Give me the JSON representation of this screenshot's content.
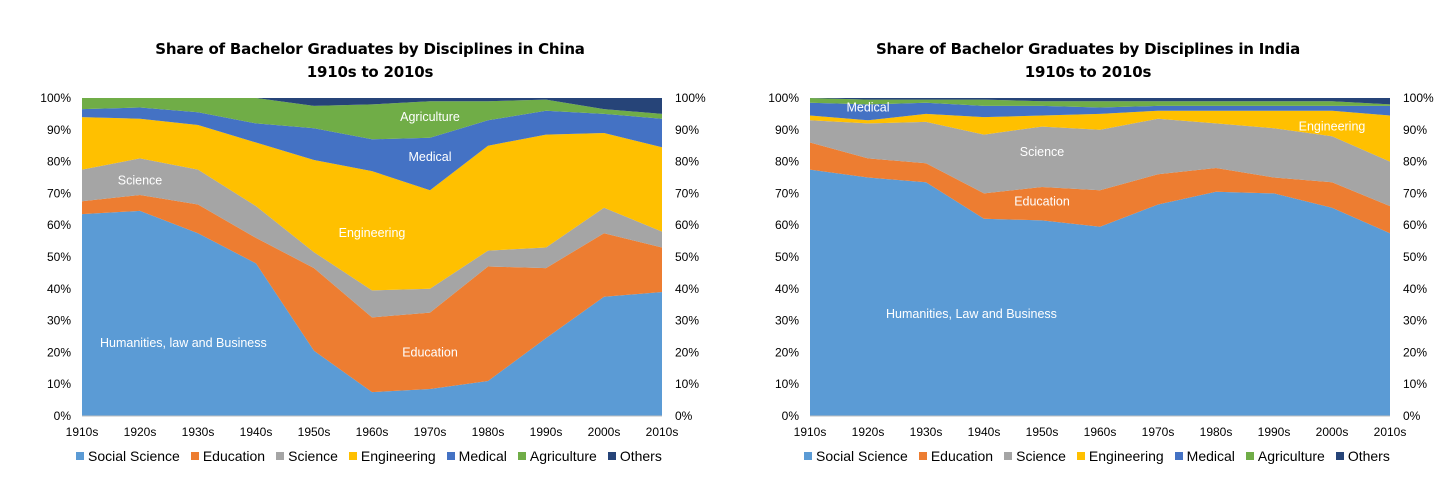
{
  "chart_data": [
    {
      "type": "area",
      "stacked": true,
      "title_line1": "Share of Bachelor Graduates by Disciplines in China",
      "title_line2": "1910s to 2010s",
      "categories": [
        "1910s",
        "1920s",
        "1930s",
        "1940s",
        "1950s",
        "1960s",
        "1970s",
        "1980s",
        "1990s",
        "2000s",
        "2010s"
      ],
      "ylim": [
        0,
        100
      ],
      "y_tick_labels": [
        "0%",
        "10%",
        "20%",
        "30%",
        "40%",
        "50%",
        "60%",
        "70%",
        "80%",
        "90%",
        "100%"
      ],
      "series": [
        {
          "name": "Social Science",
          "color": "#5B9BD5",
          "values": [
            63.5,
            64.5,
            57.5,
            48,
            20.5,
            7.5,
            8.5,
            11,
            24.5,
            37.5,
            39
          ]
        },
        {
          "name": "Education",
          "color": "#ED7D31",
          "values": [
            4,
            5,
            9,
            8,
            26,
            23.5,
            24,
            36,
            22,
            20,
            14
          ]
        },
        {
          "name": "Science",
          "color": "#A5A5A5",
          "values": [
            10,
            11.5,
            11,
            10,
            5,
            8.5,
            7.5,
            5,
            6.5,
            8,
            5
          ]
        },
        {
          "name": "Engineering",
          "color": "#FFC000",
          "values": [
            16.5,
            12.5,
            14,
            20,
            29,
            37.5,
            31,
            33,
            35.5,
            23.5,
            26.5
          ]
        },
        {
          "name": "Medical",
          "color": "#4472C4",
          "values": [
            2.5,
            3.5,
            4,
            6,
            10,
            10,
            16.5,
            8,
            7.5,
            6,
            9
          ]
        },
        {
          "name": "Agriculture",
          "color": "#70AD47",
          "values": [
            3.5,
            3,
            4.5,
            8,
            7,
            11,
            11.5,
            6,
            3.5,
            1.5,
            1.5
          ]
        },
        {
          "name": "Others",
          "color": "#264478",
          "values": [
            0,
            0,
            0,
            0,
            2.5,
            2,
            1,
            1,
            0.5,
            3.5,
            5
          ]
        }
      ],
      "annotations": [
        {
          "text": "Humanities, law and Business",
          "category": "1920s",
          "y": 23
        },
        {
          "text": "Education",
          "category": "1970s",
          "y": 20
        },
        {
          "text": "Engineering",
          "category": "1960s",
          "y": 57.5
        },
        {
          "text": "Science",
          "category": "1920s",
          "y": 74
        },
        {
          "text": "Medical",
          "category": "1970s",
          "y": 81.5
        },
        {
          "text": "Agriculture",
          "category": "1970s",
          "y": 94
        }
      ],
      "legend": [
        "Social Science",
        "Education",
        "Science",
        "Engineering",
        "Medical",
        "Agriculture",
        "Others"
      ]
    },
    {
      "type": "area",
      "stacked": true,
      "title_line1": "Share of Bachelor Graduates by Disciplines in India",
      "title_line2": "1910s to 2010s",
      "categories": [
        "1910s",
        "1920s",
        "1930s",
        "1940s",
        "1950s",
        "1960s",
        "1970s",
        "1980s",
        "1990s",
        "2000s",
        "2010s"
      ],
      "ylim": [
        0,
        100
      ],
      "y_tick_labels": [
        "0%",
        "10%",
        "20%",
        "30%",
        "40%",
        "50%",
        "60%",
        "70%",
        "80%",
        "90%",
        "100%"
      ],
      "series": [
        {
          "name": "Social Science",
          "color": "#5B9BD5",
          "values": [
            77.5,
            75,
            73.5,
            62,
            61.5,
            59.5,
            66.5,
            70.5,
            70,
            65.5,
            57.5
          ]
        },
        {
          "name": "Education",
          "color": "#ED7D31",
          "values": [
            8.5,
            6,
            6,
            8,
            10.5,
            11.5,
            9.5,
            7.5,
            5,
            8,
            8.5
          ]
        },
        {
          "name": "Science",
          "color": "#A5A5A5",
          "values": [
            7,
            11,
            13,
            18.5,
            19,
            19,
            17.5,
            14,
            15.5,
            14.5,
            14
          ]
        },
        {
          "name": "Engineering",
          "color": "#FFC000",
          "values": [
            1.5,
            1,
            2.5,
            5.5,
            3.5,
            5,
            2.5,
            4,
            5.5,
            8,
            14.5
          ]
        },
        {
          "name": "Medical",
          "color": "#4472C4",
          "values": [
            4,
            5,
            3.5,
            3.5,
            3,
            2,
            1.5,
            1.5,
            1.5,
            1.5,
            3
          ]
        },
        {
          "name": "Agriculture",
          "color": "#70AD47",
          "values": [
            1.5,
            1.5,
            1,
            2,
            1.5,
            2,
            1.5,
            1.5,
            1.5,
            1.5,
            0.5
          ]
        },
        {
          "name": "Others",
          "color": "#264478",
          "values": [
            0,
            0.5,
            0.5,
            0.5,
            1,
            1,
            1,
            1,
            1,
            1,
            2
          ]
        }
      ],
      "annotations": [
        {
          "text": "Humanities, Law and Business",
          "category": "1930s",
          "y": 32
        },
        {
          "text": "Education",
          "category": "1950s",
          "y": 67.5
        },
        {
          "text": "Science",
          "category": "1950s",
          "y": 83
        },
        {
          "text": "Engineering",
          "category": "2000s",
          "y": 91
        },
        {
          "text": "Medical",
          "category": "1920s",
          "y": 97
        }
      ],
      "legend": [
        "Social Science",
        "Education",
        "Science",
        "Engineering",
        "Medical",
        "Agriculture",
        "Others"
      ]
    }
  ]
}
